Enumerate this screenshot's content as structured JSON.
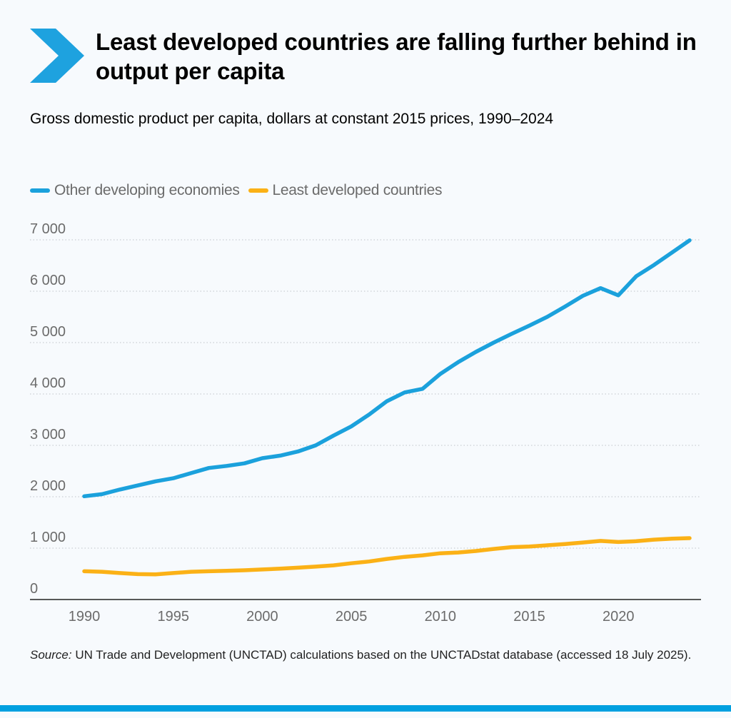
{
  "header": {
    "title": "Least developed countries are falling further behind in output per capita",
    "subtitle": "Gross domestic product per capita, dollars at constant 2015 prices, 1990–2024",
    "accent_color": "#1ea2df",
    "icon": "chevron-right-icon"
  },
  "legend": [
    {
      "label": "Other developing economies",
      "color": "#1ba1dc"
    },
    {
      "label": "Least developed countries",
      "color": "#fbb116"
    }
  ],
  "chart_data": {
    "type": "line",
    "title": "",
    "xlabel": "",
    "ylabel": "",
    "xlim": [
      1990,
      2024
    ],
    "ylim": [
      0,
      7000
    ],
    "x_ticks": [
      1990,
      1995,
      2000,
      2005,
      2010,
      2015,
      2020
    ],
    "x_tick_labels": [
      "1990",
      "1995",
      "2000",
      "2005",
      "2010",
      "2015",
      "2020"
    ],
    "y_ticks": [
      0,
      1000,
      2000,
      3000,
      4000,
      5000,
      6000,
      7000
    ],
    "y_tick_labels": [
      "0",
      "1 000",
      "2 000",
      "3 000",
      "4 000",
      "5 000",
      "6 000",
      "7 000"
    ],
    "grid": "horizontal dotted",
    "legend_position": "top-left",
    "x": [
      1990,
      1991,
      1992,
      1993,
      1994,
      1995,
      1996,
      1997,
      1998,
      1999,
      2000,
      2001,
      2002,
      2003,
      2004,
      2005,
      2006,
      2007,
      2008,
      2009,
      2010,
      2011,
      2012,
      2013,
      2014,
      2015,
      2016,
      2017,
      2018,
      2019,
      2020,
      2021,
      2022,
      2023,
      2024
    ],
    "series": [
      {
        "name": "Other developing economies",
        "color": "#1ba1dc",
        "values": [
          2010,
          2050,
          2140,
          2220,
          2300,
          2360,
          2460,
          2560,
          2600,
          2650,
          2750,
          2800,
          2880,
          3000,
          3190,
          3370,
          3600,
          3860,
          4030,
          4100,
          4390,
          4620,
          4820,
          5000,
          5170,
          5330,
          5500,
          5700,
          5910,
          6060,
          5920,
          6290,
          6510,
          6750,
          6990
        ]
      },
      {
        "name": "Least developed countries",
        "color": "#fbb116",
        "values": [
          550,
          540,
          515,
          495,
          490,
          515,
          540,
          550,
          560,
          570,
          585,
          600,
          620,
          640,
          665,
          705,
          740,
          790,
          830,
          860,
          900,
          915,
          945,
          985,
          1020,
          1030,
          1055,
          1080,
          1110,
          1140,
          1120,
          1135,
          1165,
          1185,
          1195
        ]
      }
    ]
  },
  "source": {
    "label": "Source:",
    "text": " UN Trade and Development (UNCTAD) calculations based on the UNCTADstat database (accessed 18 July 2025)."
  }
}
